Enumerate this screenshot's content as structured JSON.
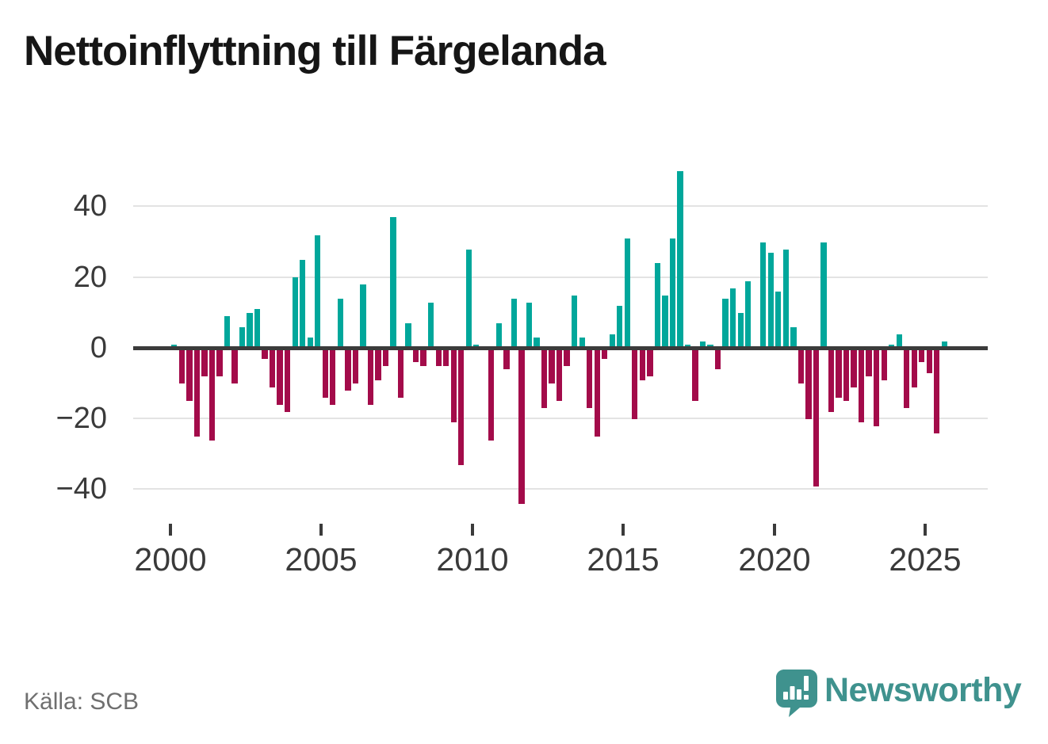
{
  "title": "Nettoinflyttning till Färgelanda",
  "source": "Källa: SCB",
  "branding": {
    "name": "Newsworthy",
    "icon": "newsworthy-speech-bubble-chart-icon"
  },
  "colors": {
    "positive_bar": "#00A79B",
    "negative_bar": "#A30B4A",
    "gridline": "#E3E3E3",
    "zero_line": "#3B3B3B",
    "axis_text": "#3A3A3A",
    "title_text": "#161616",
    "source_text": "#6F6F6F",
    "brand_teal": "#3F928E"
  },
  "chart_data": {
    "type": "bar",
    "title": "Nettoinflyttning till Färgelanda",
    "frequency": "quarterly",
    "x_start": "2000-Q1",
    "x_end": "2025-Q3",
    "values": [
      1,
      -10,
      -15,
      -25,
      -8,
      -26,
      -8,
      9,
      -10,
      6,
      10,
      11,
      -3,
      -11,
      -16,
      -18,
      20,
      25,
      3,
      32,
      -14,
      -16,
      14,
      -12,
      -10,
      18,
      -16,
      -9,
      -5,
      37,
      -14,
      7,
      -4,
      -5,
      13,
      -5,
      -5,
      -21,
      -33,
      28,
      1,
      0,
      -26,
      7,
      -6,
      14,
      -44,
      13,
      3,
      -17,
      -10,
      -15,
      -5,
      15,
      3,
      -17,
      -25,
      -3,
      4,
      12,
      31,
      -20,
      -9,
      -8,
      24,
      15,
      31,
      50,
      1,
      -15,
      2,
      1,
      -6,
      14,
      17,
      10,
      19,
      0,
      30,
      27,
      16,
      28,
      6,
      -10,
      -20,
      -39,
      30,
      -18,
      -14,
      -15,
      -11,
      -21,
      -8,
      -22,
      -9,
      1,
      4,
      -17,
      -11,
      -4,
      -7,
      -24,
      2
    ],
    "xtick_labels": [
      "2000",
      "2005",
      "2010",
      "2015",
      "2020",
      "2025"
    ],
    "ytick_labels": [
      "40",
      "20",
      "0",
      "−20",
      "−40"
    ],
    "yticks": [
      40,
      20,
      0,
      -20,
      -40
    ],
    "ylim": [
      -46,
      52
    ],
    "grid": true,
    "legend": false
  }
}
